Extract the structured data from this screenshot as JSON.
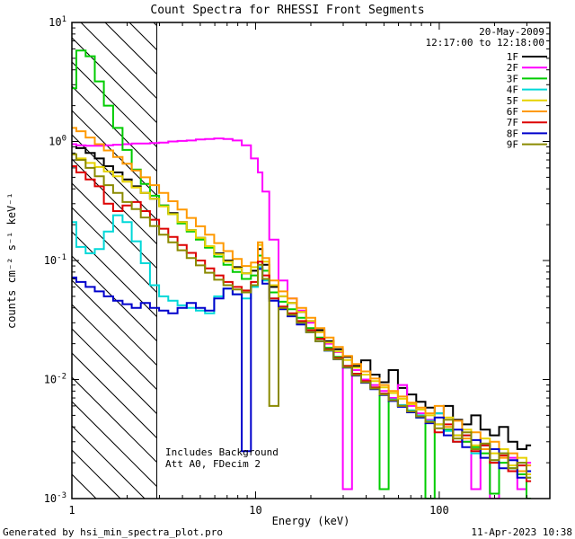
{
  "footer": {
    "generator": "Generated by hsi_min_spectra_plot.pro",
    "timestamp": "11-Apr-2023 10:38"
  },
  "chart_data": {
    "type": "line",
    "title": "Count Spectra for RHESSI Front Segments",
    "xlabel": "Energy (keV)",
    "ylabel": "counts cm⁻² s⁻¹ keV⁻¹",
    "date_label": "20-May-2009",
    "time_label": "12:17:00 to 12:18:00",
    "annotations": [
      "Includes Background",
      "Att A0, FDecim 2"
    ],
    "xscale": "log",
    "yscale": "log",
    "xlim": [
      1,
      400
    ],
    "ylim": [
      0.001,
      10
    ],
    "hatch_region": {
      "xmin": 1,
      "xmax": 2.9
    },
    "xticks": [
      {
        "value": 1,
        "label": "1"
      },
      {
        "value": 10,
        "label": "10"
      },
      {
        "value": 100,
        "label": "100"
      }
    ],
    "yticks": [
      {
        "value": 10,
        "base": "10",
        "exp": "1"
      },
      {
        "value": 1,
        "base": "10",
        "exp": "0"
      },
      {
        "value": 0.1,
        "base": "10",
        "exp": "-1"
      },
      {
        "value": 0.01,
        "base": "10",
        "exp": "-2"
      },
      {
        "value": 0.001,
        "base": "10",
        "exp": "-3"
      }
    ],
    "x": [
      1.0,
      1.12,
      1.26,
      1.41,
      1.58,
      1.78,
      2.0,
      2.24,
      2.51,
      2.82,
      3.16,
      3.55,
      3.98,
      4.47,
      5.01,
      5.62,
      6.31,
      7.08,
      7.94,
      8.91,
      10.0,
      10.6,
      11.2,
      12.6,
      14.1,
      15.8,
      17.8,
      20.0,
      22.4,
      25.1,
      28.2,
      31.6,
      35.5,
      39.8,
      44.7,
      50.1,
      56.2,
      63.1,
      70.8,
      79.4,
      89.1,
      100,
      112,
      126,
      141,
      158,
      178,
      200,
      224,
      251,
      282,
      316
    ],
    "series": [
      {
        "name": "1F",
        "color": "#000000",
        "values": [
          0.95,
          0.88,
          0.8,
          0.72,
          0.62,
          0.55,
          0.48,
          0.42,
          0.37,
          0.33,
          0.29,
          0.25,
          0.21,
          0.18,
          0.155,
          0.13,
          0.115,
          0.1,
          0.088,
          0.078,
          0.082,
          0.125,
          0.092,
          0.06,
          0.05,
          0.044,
          0.037,
          0.031,
          0.026,
          0.021,
          0.018,
          0.0155,
          0.013,
          0.0145,
          0.011,
          0.0095,
          0.012,
          0.0085,
          0.0075,
          0.0065,
          0.0058,
          0.0052,
          0.006,
          0.0046,
          0.0042,
          0.005,
          0.0038,
          0.0034,
          0.004,
          0.003,
          0.0026,
          0.0028
        ]
      },
      {
        "name": "2F",
        "color": "#ff00ff",
        "values": [
          0.95,
          0.93,
          0.92,
          0.92,
          0.93,
          0.94,
          0.95,
          0.96,
          0.96,
          0.97,
          0.98,
          1.0,
          1.01,
          1.02,
          1.04,
          1.05,
          1.06,
          1.05,
          1.02,
          0.93,
          0.72,
          0.55,
          0.38,
          0.15,
          0.068,
          0.048,
          0.038,
          0.03,
          0.025,
          0.02,
          0.017,
          0.0012,
          0.012,
          0.01,
          0.009,
          0.008,
          0.007,
          0.009,
          0.006,
          0.0052,
          0.0046,
          0.0042,
          0.0038,
          0.0034,
          0.003,
          0.0012,
          0.0028,
          0.001,
          0.0024,
          0.0022,
          0.0012,
          0.002
        ]
      },
      {
        "name": "3F",
        "color": "#00cc00",
        "values": [
          2.8,
          5.8,
          5.2,
          3.2,
          2.0,
          1.3,
          0.85,
          0.58,
          0.44,
          0.35,
          0.29,
          0.245,
          0.205,
          0.175,
          0.15,
          0.128,
          0.108,
          0.092,
          0.08,
          0.07,
          0.075,
          0.11,
          0.082,
          0.054,
          0.045,
          0.039,
          0.033,
          0.027,
          0.0225,
          0.0185,
          0.0155,
          0.013,
          0.011,
          0.0095,
          0.0085,
          0.0012,
          0.0068,
          0.006,
          0.0055,
          0.0048,
          0.001,
          0.0042,
          0.0038,
          0.0034,
          0.003,
          0.0027,
          0.0024,
          0.0011,
          0.002,
          0.0018,
          0.0016,
          0.001
        ]
      },
      {
        "name": "4F",
        "color": "#00d8d8",
        "values": [
          0.21,
          0.13,
          0.115,
          0.125,
          0.175,
          0.24,
          0.21,
          0.145,
          0.095,
          0.062,
          0.05,
          0.046,
          0.042,
          0.04,
          0.038,
          0.036,
          0.05,
          0.058,
          0.052,
          0.048,
          0.06,
          0.088,
          0.068,
          0.048,
          0.04,
          0.035,
          0.03,
          0.025,
          0.021,
          0.0175,
          0.015,
          0.0128,
          0.011,
          0.0096,
          0.0085,
          0.0076,
          0.0068,
          0.0061,
          0.0055,
          0.005,
          0.0045,
          0.0052,
          0.0037,
          0.003,
          0.0034,
          0.0024,
          0.0028,
          0.0021,
          0.0024,
          0.0018,
          0.002,
          0.0015
        ]
      },
      {
        "name": "5F",
        "color": "#e6d200",
        "values": [
          0.78,
          0.72,
          0.66,
          0.61,
          0.56,
          0.51,
          0.46,
          0.41,
          0.37,
          0.33,
          0.285,
          0.245,
          0.21,
          0.18,
          0.155,
          0.132,
          0.113,
          0.098,
          0.086,
          0.078,
          0.088,
          0.135,
          0.098,
          0.062,
          0.05,
          0.044,
          0.037,
          0.031,
          0.025,
          0.0205,
          0.0172,
          0.0146,
          0.0126,
          0.011,
          0.0097,
          0.0086,
          0.0077,
          0.0069,
          0.0062,
          0.0056,
          0.005,
          0.0042,
          0.0048,
          0.0034,
          0.0038,
          0.0028,
          0.0032,
          0.0024,
          0.0026,
          0.0019,
          0.0022,
          0.0016
        ]
      },
      {
        "name": "6F",
        "color": "#ff9900",
        "values": [
          1.3,
          1.22,
          1.08,
          0.95,
          0.84,
          0.74,
          0.65,
          0.57,
          0.5,
          0.43,
          0.37,
          0.315,
          0.268,
          0.228,
          0.194,
          0.165,
          0.14,
          0.12,
          0.103,
          0.09,
          0.096,
          0.142,
          0.105,
          0.068,
          0.055,
          0.048,
          0.04,
          0.033,
          0.027,
          0.0225,
          0.0188,
          0.0158,
          0.0135,
          0.0117,
          0.0102,
          0.009,
          0.008,
          0.0072,
          0.0064,
          0.0058,
          0.0052,
          0.006,
          0.004,
          0.0045,
          0.0032,
          0.0036,
          0.0026,
          0.003,
          0.0022,
          0.0024,
          0.0017,
          0.0019
        ]
      },
      {
        "name": "7F",
        "color": "#dd0000",
        "values": [
          0.62,
          0.55,
          0.48,
          0.42,
          0.3,
          0.26,
          0.29,
          0.31,
          0.26,
          0.22,
          0.185,
          0.158,
          0.135,
          0.116,
          0.1,
          0.086,
          0.075,
          0.066,
          0.06,
          0.056,
          0.066,
          0.098,
          0.075,
          0.048,
          0.041,
          0.036,
          0.031,
          0.026,
          0.022,
          0.018,
          0.0152,
          0.013,
          0.0112,
          0.0097,
          0.0086,
          0.0076,
          0.0067,
          0.006,
          0.0054,
          0.0049,
          0.0044,
          0.0036,
          0.0042,
          0.003,
          0.0034,
          0.0025,
          0.0028,
          0.002,
          0.0023,
          0.0017,
          0.0019,
          0.0014
        ]
      },
      {
        "name": "8F",
        "color": "#0000cc",
        "values": [
          0.072,
          0.066,
          0.06,
          0.055,
          0.05,
          0.046,
          0.043,
          0.04,
          0.044,
          0.04,
          0.038,
          0.036,
          0.04,
          0.044,
          0.04,
          0.038,
          0.048,
          0.058,
          0.052,
          0.0025,
          0.062,
          0.085,
          0.064,
          0.046,
          0.039,
          0.034,
          0.029,
          0.025,
          0.021,
          0.0175,
          0.0148,
          0.0126,
          0.0108,
          0.0094,
          0.0083,
          0.0074,
          0.0066,
          0.0059,
          0.0053,
          0.0048,
          0.0043,
          0.0048,
          0.0034,
          0.0038,
          0.0027,
          0.0031,
          0.0022,
          0.0026,
          0.0018,
          0.0021,
          0.0015,
          0.0017
        ]
      },
      {
        "name": "9F",
        "color": "#8a8a00",
        "values": [
          0.78,
          0.7,
          0.6,
          0.51,
          0.43,
          0.37,
          0.31,
          0.27,
          0.23,
          0.195,
          0.165,
          0.142,
          0.122,
          0.105,
          0.091,
          0.079,
          0.069,
          0.062,
          0.057,
          0.054,
          0.062,
          0.092,
          0.07,
          0.006,
          0.04,
          0.035,
          0.03,
          0.025,
          0.021,
          0.0176,
          0.0149,
          0.0127,
          0.0109,
          0.0095,
          0.0084,
          0.0075,
          0.0067,
          0.006,
          0.0054,
          0.0049,
          0.0044,
          0.0039,
          0.0046,
          0.0032,
          0.0036,
          0.0026,
          0.0029,
          0.0021,
          0.0024,
          0.0018,
          0.002,
          0.0015
        ]
      }
    ]
  }
}
